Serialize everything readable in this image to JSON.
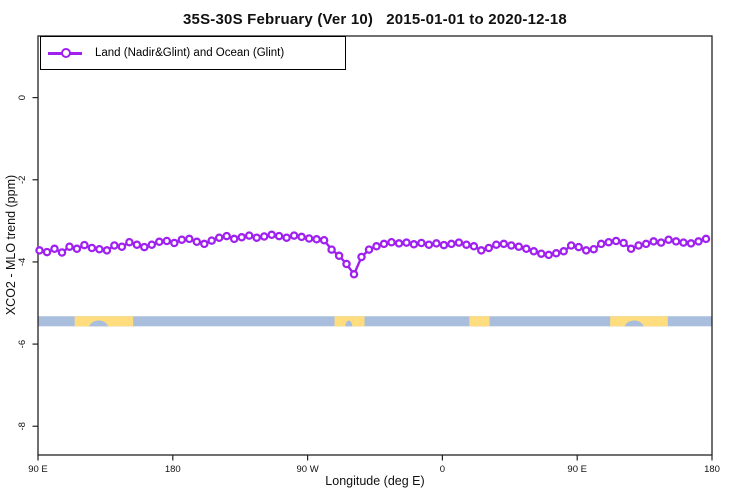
{
  "accent_color": "#a020f0",
  "chart_data": {
    "type": "line",
    "title": "35S-30S February (Ver 10)   2015-01-01 to 2020-12-18",
    "xlabel": "Longitude (deg E)",
    "ylabel": "XCO2 - MLO trend (ppm)",
    "xlim": [
      90,
      540
    ],
    "ylim": [
      -8.7,
      1.5
    ],
    "grid": false,
    "legend": {
      "position": "topleft",
      "label": "Land (Nadir&Glint) and Ocean (Glint)",
      "marker": "open-circle-on-line",
      "color": "#a020f0"
    },
    "x_ticks": {
      "values": [
        90,
        180,
        270,
        360,
        450,
        540
      ],
      "labels": [
        "90 E",
        "180",
        "90 W",
        "0",
        "90 E",
        "180"
      ]
    },
    "y_ticks": {
      "values": [
        0,
        -2,
        -4,
        -6,
        -8
      ],
      "labels": [
        "0",
        "-2",
        "-4",
        "-6",
        "-8"
      ]
    },
    "series": [
      {
        "name": "Land (Nadir&Glint) and Ocean (Glint)",
        "color": "#a020f0",
        "marker": "open-circle",
        "x_start_lon": 91,
        "x_step_lon": 5,
        "values": [
          -3.72,
          -3.76,
          -3.68,
          -3.77,
          -3.63,
          -3.68,
          -3.59,
          -3.66,
          -3.69,
          -3.72,
          -3.6,
          -3.63,
          -3.52,
          -3.58,
          -3.64,
          -3.58,
          -3.51,
          -3.49,
          -3.54,
          -3.46,
          -3.44,
          -3.51,
          -3.56,
          -3.48,
          -3.41,
          -3.37,
          -3.44,
          -3.4,
          -3.36,
          -3.41,
          -3.38,
          -3.34,
          -3.37,
          -3.41,
          -3.36,
          -3.39,
          -3.43,
          -3.45,
          -3.47,
          -3.7,
          -3.85,
          -4.05,
          -4.3,
          -3.88,
          -3.7,
          -3.62,
          -3.56,
          -3.52,
          -3.55,
          -3.53,
          -3.57,
          -3.54,
          -3.58,
          -3.55,
          -3.59,
          -3.56,
          -3.53,
          -3.58,
          -3.62,
          -3.72,
          -3.66,
          -3.58,
          -3.56,
          -3.6,
          -3.63,
          -3.68,
          -3.74,
          -3.8,
          -3.83,
          -3.79,
          -3.74,
          -3.6,
          -3.64,
          -3.72,
          -3.69,
          -3.56,
          -3.52,
          -3.49,
          -3.54,
          -3.68,
          -3.6,
          -3.56,
          -3.5,
          -3.53,
          -3.46,
          -3.5,
          -3.53,
          -3.55,
          -3.5,
          -3.44
        ]
      }
    ],
    "map_band": {
      "description": "land-ocean strip for 35S-30S latitude band",
      "value_top": -5.32,
      "value_bottom": -5.57,
      "ocean_color": "#a9bedd",
      "land_color": "#ffdd7e",
      "land_segments_lon": [
        [
          114.5,
          153.5
        ],
        [
          288,
          308
        ],
        [
          378,
          391.5
        ],
        [
          472,
          510.5
        ]
      ],
      "ocean_notches_lon": [
        [
          124,
          137
        ],
        [
          295,
          300
        ],
        [
          481.5,
          494.5
        ]
      ]
    }
  }
}
